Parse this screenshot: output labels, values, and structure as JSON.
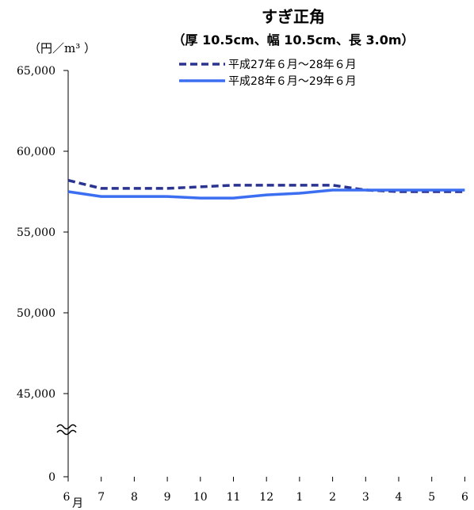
{
  "chart_data": {
    "type": "line",
    "title": "すぎ正角",
    "subtitle": "（厚 10.5cm、幅 10.5cm、長 3.0m）",
    "ylabel": "（円／m³ ）",
    "x_unit_label": "月",
    "categories": [
      "6",
      "7",
      "8",
      "9",
      "10",
      "11",
      "12",
      "1",
      "2",
      "3",
      "4",
      "5",
      "6"
    ],
    "y_tick_labels": [
      "0",
      "45,000",
      "50,000",
      "55,000",
      "60,000",
      "65,000"
    ],
    "ylim": [
      45000,
      65000
    ],
    "axis_break": true,
    "legend_position": "top-right",
    "series": [
      {
        "name": "平成27年６月～28年６月",
        "style": "dashed",
        "color": "#2B3390",
        "values": [
          58200,
          57700,
          57700,
          57700,
          57800,
          57900,
          57900,
          57900,
          57900,
          57600,
          57500,
          57500,
          57500
        ]
      },
      {
        "name": "平成28年６月～29年６月",
        "style": "solid",
        "color": "#3B6EF0",
        "values": [
          57500,
          57200,
          57200,
          57200,
          57100,
          57100,
          57300,
          57400,
          57600,
          57600,
          57600,
          57600,
          57600
        ]
      }
    ]
  }
}
